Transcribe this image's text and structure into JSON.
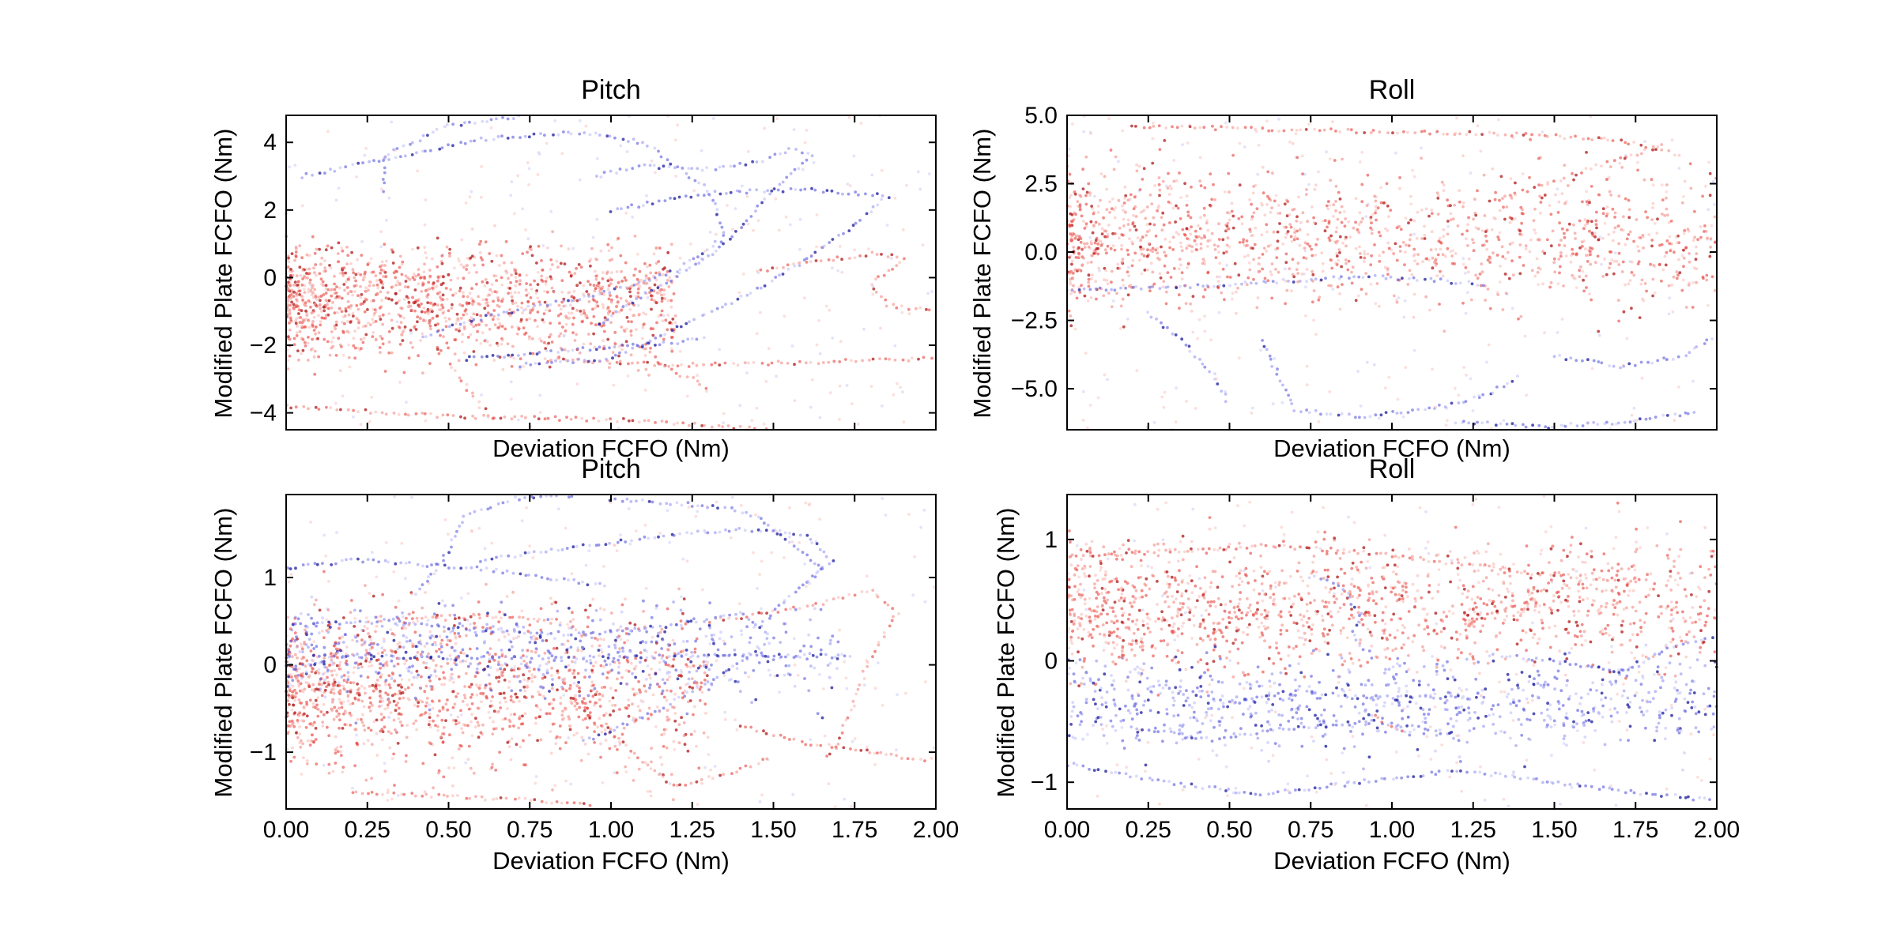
{
  "chart_data": [
    {
      "id": "top-left",
      "type": "scatter",
      "title": "Pitch",
      "xlabel": "Deviation FCFO (Nm)",
      "ylabel": "Modified Plate FCFO (Nm)",
      "xlim": [
        0,
        2.0
      ],
      "ylim": [
        -4.5,
        4.8
      ],
      "xticks": [
        0,
        0.25,
        0.5,
        0.75,
        1.0,
        1.25,
        1.5,
        1.75,
        2.0
      ],
      "xticklabels": [],
      "yticks": [
        -4,
        -2,
        0,
        2,
        4
      ],
      "yticklabels": [
        "−4",
        "−2",
        "0",
        "2",
        "4"
      ],
      "colormap": "bwr",
      "red_cluster": {
        "xmax": 1.2,
        "ymin": -2.6,
        "ymax": 1.2
      },
      "blue_curves": [
        [
          [
            0.05,
            3.0
          ],
          [
            0.3,
            3.5
          ],
          [
            0.6,
            4.1
          ],
          [
            0.9,
            4.3
          ],
          [
            1.1,
            4.0
          ],
          [
            1.2,
            3.3
          ],
          [
            1.3,
            2.6
          ],
          [
            1.35,
            1.2
          ],
          [
            1.2,
            0.2
          ],
          [
            1.0,
            -0.4
          ],
          [
            0.6,
            -1.2
          ],
          [
            0.4,
            -1.8
          ]
        ],
        [
          [
            0.3,
            2.6
          ],
          [
            0.3,
            3.6
          ],
          [
            0.5,
            4.5
          ],
          [
            0.75,
            4.8
          ]
        ],
        [
          [
            0.95,
            3.0
          ],
          [
            1.1,
            3.3
          ],
          [
            1.3,
            3.2
          ],
          [
            1.45,
            3.4
          ],
          [
            1.55,
            3.8
          ],
          [
            1.62,
            3.6
          ],
          [
            1.5,
            2.6
          ],
          [
            1.35,
            1.0
          ],
          [
            1.2,
            0.0
          ],
          [
            1.05,
            -0.8
          ],
          [
            0.95,
            -1.5
          ]
        ],
        [
          [
            1.0,
            2.0
          ],
          [
            1.3,
            2.5
          ],
          [
            1.6,
            2.6
          ],
          [
            1.75,
            2.5
          ],
          [
            1.85,
            2.4
          ],
          [
            1.7,
            1.2
          ],
          [
            1.55,
            0.2
          ],
          [
            1.4,
            -0.6
          ],
          [
            1.2,
            -1.5
          ],
          [
            1.0,
            -2.4
          ],
          [
            0.7,
            -2.6
          ]
        ],
        [
          [
            0.55,
            -2.4
          ],
          [
            0.8,
            -2.2
          ],
          [
            1.1,
            -2.0
          ],
          [
            1.3,
            -1.8
          ]
        ]
      ],
      "red_curves": [
        [
          [
            1.45,
            0.2
          ],
          [
            1.65,
            0.5
          ],
          [
            1.8,
            0.7
          ],
          [
            1.9,
            0.6
          ],
          [
            1.8,
            -0.2
          ],
          [
            1.85,
            -0.8
          ],
          [
            2.0,
            -1.0
          ]
        ],
        [
          [
            0.5,
            -2.5
          ],
          [
            0.55,
            -3.2
          ],
          [
            0.6,
            -3.8
          ],
          [
            0.65,
            -4.3
          ]
        ],
        [
          [
            0.0,
            -3.8
          ],
          [
            0.5,
            -4.1
          ],
          [
            1.0,
            -4.2
          ],
          [
            1.5,
            -4.5
          ]
        ],
        [
          [
            0.8,
            -2.4
          ],
          [
            1.2,
            -2.6
          ],
          [
            1.6,
            -2.5
          ],
          [
            2.0,
            -2.4
          ]
        ],
        [
          [
            1.1,
            -1.8
          ],
          [
            1.15,
            -2.6
          ],
          [
            1.25,
            -3.0
          ],
          [
            1.3,
            -3.4
          ]
        ]
      ]
    },
    {
      "id": "top-right",
      "type": "scatter",
      "title": "Roll",
      "xlabel": "Deviation FCFO (Nm)",
      "ylabel": "Modified Plate FCFO (Nm)",
      "xlim": [
        0,
        2.0
      ],
      "ylim": [
        -6.5,
        5.0
      ],
      "xticks": [
        0,
        0.25,
        0.5,
        0.75,
        1.0,
        1.25,
        1.5,
        1.75,
        2.0
      ],
      "xticklabels": [],
      "yticks": [
        -5,
        -2.5,
        0,
        2.5,
        5
      ],
      "yticklabels": [
        "−5.0",
        "−2.5",
        "0.0",
        "2.5",
        "5.0"
      ],
      "colormap": "bwr",
      "red_cluster": {
        "xmax": 2.0,
        "ymin": -2.2,
        "ymax": 3.2
      },
      "blue_curves": [
        [
          [
            0.0,
            -1.4
          ],
          [
            0.3,
            -1.3
          ],
          [
            0.6,
            -1.1
          ],
          [
            0.9,
            -0.9
          ],
          [
            1.1,
            -1.0
          ],
          [
            1.3,
            -1.2
          ]
        ],
        [
          [
            0.6,
            -3.2
          ],
          [
            0.65,
            -4.5
          ],
          [
            0.7,
            -5.8
          ],
          [
            0.9,
            -6.0
          ],
          [
            1.1,
            -5.8
          ],
          [
            1.3,
            -5.2
          ],
          [
            1.4,
            -4.5
          ]
        ],
        [
          [
            1.5,
            -3.8
          ],
          [
            1.7,
            -4.2
          ],
          [
            1.9,
            -3.8
          ],
          [
            2.0,
            -3.0
          ]
        ],
        [
          [
            0.25,
            -2.2
          ],
          [
            0.35,
            -3.2
          ],
          [
            0.45,
            -4.5
          ],
          [
            0.5,
            -5.6
          ]
        ],
        [
          [
            1.2,
            -6.2
          ],
          [
            1.45,
            -6.4
          ],
          [
            1.75,
            -6.2
          ],
          [
            1.95,
            -5.8
          ]
        ]
      ],
      "red_curves": [
        [
          [
            0.2,
            4.6
          ],
          [
            0.6,
            4.5
          ],
          [
            1.0,
            4.4
          ],
          [
            1.4,
            4.3
          ],
          [
            1.7,
            4.1
          ],
          [
            1.9,
            3.5
          ]
        ],
        [
          [
            1.3,
            1.8
          ],
          [
            1.5,
            2.6
          ],
          [
            1.7,
            3.4
          ],
          [
            1.85,
            4.0
          ]
        ]
      ]
    },
    {
      "id": "bottom-left",
      "type": "scatter",
      "title": "Pitch",
      "xlabel": "Deviation FCFO (Nm)",
      "ylabel": "Modified Plate FCFO (Nm)",
      "xlim": [
        0,
        2.0
      ],
      "ylim": [
        -1.65,
        1.95
      ],
      "xticks": [
        0,
        0.25,
        0.5,
        0.75,
        1.0,
        1.25,
        1.5,
        1.75,
        2.0
      ],
      "xticklabels": [
        "0.00",
        "0.25",
        "0.50",
        "0.75",
        "1.00",
        "1.25",
        "1.50",
        "1.75",
        "2.00"
      ],
      "yticks": [
        -1,
        0,
        1
      ],
      "yticklabels": [
        "−1",
        "0",
        "1"
      ],
      "colormap": "bwr",
      "red_cluster": {
        "xmax": 1.3,
        "ymin": -1.3,
        "ymax": 0.7
      },
      "blue_curves": [
        [
          [
            0.4,
            0.8
          ],
          [
            0.5,
            1.3
          ],
          [
            0.55,
            1.7
          ],
          [
            0.7,
            1.9
          ],
          [
            0.9,
            1.95
          ]
        ],
        [
          [
            0.6,
            1.2
          ],
          [
            0.9,
            1.35
          ],
          [
            1.2,
            1.5
          ],
          [
            1.4,
            1.55
          ],
          [
            1.6,
            1.5
          ],
          [
            1.68,
            1.2
          ],
          [
            1.55,
            0.8
          ],
          [
            1.45,
            0.4
          ]
        ],
        [
          [
            1.0,
            1.9
          ],
          [
            1.2,
            1.85
          ],
          [
            1.35,
            1.8
          ],
          [
            1.45,
            1.7
          ],
          [
            1.55,
            1.4
          ],
          [
            1.65,
            1.1
          ],
          [
            1.6,
            0.9
          ]
        ],
        [
          [
            0.0,
            1.1
          ],
          [
            0.2,
            1.2
          ],
          [
            0.4,
            1.15
          ],
          [
            0.6,
            1.1
          ],
          [
            0.8,
            1.0
          ],
          [
            1.0,
            0.9
          ]
        ],
        [
          [
            0.1,
            0.1
          ],
          [
            0.5,
            0.08
          ],
          [
            0.9,
            0.09
          ],
          [
            1.3,
            0.1
          ],
          [
            1.6,
            0.1
          ],
          [
            1.75,
            0.1
          ]
        ],
        [
          [
            0.0,
            0.45
          ],
          [
            0.3,
            0.5
          ],
          [
            0.6,
            0.4
          ],
          [
            0.9,
            0.35
          ],
          [
            1.2,
            0.45
          ],
          [
            1.4,
            0.6
          ],
          [
            1.5,
            0.3
          ],
          [
            1.3,
            -0.2
          ],
          [
            1.1,
            -0.6
          ],
          [
            0.9,
            -0.9
          ]
        ]
      ],
      "red_curves": [
        [
          [
            1.3,
            0.5
          ],
          [
            1.5,
            0.6
          ],
          [
            1.7,
            0.75
          ],
          [
            1.8,
            0.85
          ],
          [
            1.88,
            0.6
          ],
          [
            1.8,
            0.1
          ],
          [
            1.75,
            -0.4
          ],
          [
            1.7,
            -0.9
          ],
          [
            1.65,
            -1.1
          ]
        ],
        [
          [
            0.9,
            -0.5
          ],
          [
            1.1,
            -1.1
          ],
          [
            1.2,
            -1.4
          ],
          [
            1.3,
            -1.3
          ],
          [
            1.4,
            -1.2
          ],
          [
            1.5,
            -1.05
          ]
        ],
        [
          [
            0.2,
            -1.45
          ],
          [
            0.45,
            -1.5
          ],
          [
            0.75,
            -1.55
          ],
          [
            0.95,
            -1.6
          ]
        ],
        [
          [
            1.4,
            -0.7
          ],
          [
            1.6,
            -0.9
          ],
          [
            1.8,
            -1.0
          ],
          [
            2.0,
            -1.1
          ]
        ],
        [
          [
            0.35,
            0.55
          ],
          [
            0.6,
            0.55
          ],
          [
            0.85,
            0.52
          ]
        ]
      ]
    },
    {
      "id": "bottom-right",
      "type": "scatter",
      "title": "Roll",
      "xlabel": "Deviation FCFO (Nm)",
      "ylabel": "Modified Plate FCFO (Nm)",
      "xlim": [
        0,
        2.0
      ],
      "ylim": [
        -1.22,
        1.37
      ],
      "xticks": [
        0,
        0.25,
        0.5,
        0.75,
        1.0,
        1.25,
        1.5,
        1.75,
        2.0
      ],
      "xticklabels": [
        "0.00",
        "0.25",
        "0.50",
        "0.75",
        "1.00",
        "1.25",
        "1.50",
        "1.75",
        "2.00"
      ],
      "yticks": [
        -1,
        0,
        1
      ],
      "yticklabels": [
        "−1",
        "0",
        "1"
      ],
      "colormap": "bwr",
      "red_cluster": {
        "xmax": 2.0,
        "ymin": -0.15,
        "ymax": 1.05
      },
      "blue_curves": [
        [
          [
            0.75,
            0.7
          ],
          [
            0.85,
            0.6
          ],
          [
            0.9,
            0.4
          ],
          [
            0.88,
            0.2
          ],
          [
            0.95,
            0.0
          ]
        ],
        [
          [
            0.3,
            -0.2
          ],
          [
            0.5,
            -0.35
          ],
          [
            0.7,
            -0.25
          ],
          [
            0.9,
            -0.3
          ],
          [
            1.1,
            -0.3
          ],
          [
            1.25,
            -0.3
          ]
        ],
        [
          [
            0.0,
            -0.85
          ],
          [
            0.3,
            -1.0
          ],
          [
            0.6,
            -1.1
          ],
          [
            0.9,
            -1.0
          ],
          [
            1.2,
            -0.9
          ],
          [
            1.5,
            -1.0
          ],
          [
            1.8,
            -1.1
          ],
          [
            2.0,
            -1.15
          ]
        ],
        [
          [
            0.2,
            -0.55
          ],
          [
            0.45,
            -0.65
          ],
          [
            0.7,
            -0.55
          ],
          [
            0.95,
            -0.5
          ],
          [
            1.2,
            -0.6
          ]
        ],
        [
          [
            1.3,
            0.05
          ],
          [
            1.5,
            0.0
          ],
          [
            1.7,
            -0.1
          ],
          [
            1.85,
            0.1
          ],
          [
            2.0,
            0.2
          ]
        ]
      ],
      "red_curves": [
        [
          [
            0.0,
            0.85
          ],
          [
            0.3,
            0.9
          ],
          [
            0.6,
            0.95
          ],
          [
            0.9,
            0.9
          ],
          [
            1.2,
            0.8
          ],
          [
            1.5,
            0.7
          ],
          [
            1.8,
            0.65
          ]
        ],
        [
          [
            0.95,
            -0.45
          ],
          [
            1.0,
            -0.55
          ],
          [
            1.05,
            -0.6
          ]
        ]
      ]
    }
  ]
}
